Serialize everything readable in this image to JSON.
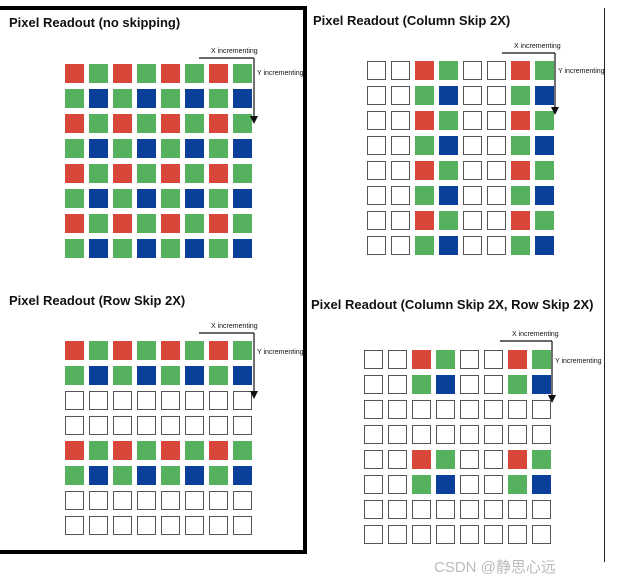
{
  "colors": {
    "red": "#d9473a",
    "green": "#56b15e",
    "blue": "#0b3f9a",
    "empty": "#ffffff",
    "empty_border": "#555555"
  },
  "direction_labels": {
    "x": "X incrementing",
    "y": "Y incrementing"
  },
  "panels": [
    {
      "title": "Pixel Readout (no skipping)",
      "rows": [
        [
          "R",
          "G",
          "R",
          "G",
          "R",
          "G",
          "R",
          "G"
        ],
        [
          "G",
          "B",
          "G",
          "B",
          "G",
          "B",
          "G",
          "B"
        ],
        [
          "R",
          "G",
          "R",
          "G",
          "R",
          "G",
          "R",
          "G"
        ],
        [
          "G",
          "B",
          "G",
          "B",
          "G",
          "B",
          "G",
          "B"
        ],
        [
          "R",
          "G",
          "R",
          "G",
          "R",
          "G",
          "R",
          "G"
        ],
        [
          "G",
          "B",
          "G",
          "B",
          "G",
          "B",
          "G",
          "B"
        ],
        [
          "R",
          "G",
          "R",
          "G",
          "R",
          "G",
          "R",
          "G"
        ],
        [
          "G",
          "B",
          "G",
          "B",
          "G",
          "B",
          "G",
          "B"
        ]
      ]
    },
    {
      "title": "Pixel Readout (Column Skip 2X)",
      "rows": [
        [
          "E",
          "E",
          "R",
          "G",
          "E",
          "E",
          "R",
          "G"
        ],
        [
          "E",
          "E",
          "G",
          "B",
          "E",
          "E",
          "G",
          "B"
        ],
        [
          "E",
          "E",
          "R",
          "G",
          "E",
          "E",
          "R",
          "G"
        ],
        [
          "E",
          "E",
          "G",
          "B",
          "E",
          "E",
          "G",
          "B"
        ],
        [
          "E",
          "E",
          "R",
          "G",
          "E",
          "E",
          "R",
          "G"
        ],
        [
          "E",
          "E",
          "G",
          "B",
          "E",
          "E",
          "G",
          "B"
        ],
        [
          "E",
          "E",
          "R",
          "G",
          "E",
          "E",
          "R",
          "G"
        ],
        [
          "E",
          "E",
          "G",
          "B",
          "E",
          "E",
          "G",
          "B"
        ]
      ]
    },
    {
      "title": "Pixel Readout (Row Skip 2X)",
      "rows": [
        [
          "R",
          "G",
          "R",
          "G",
          "R",
          "G",
          "R",
          "G"
        ],
        [
          "G",
          "B",
          "G",
          "B",
          "G",
          "B",
          "G",
          "B"
        ],
        [
          "E",
          "E",
          "E",
          "E",
          "E",
          "E",
          "E",
          "E"
        ],
        [
          "E",
          "E",
          "E",
          "E",
          "E",
          "E",
          "E",
          "E"
        ],
        [
          "R",
          "G",
          "R",
          "G",
          "R",
          "G",
          "R",
          "G"
        ],
        [
          "G",
          "B",
          "G",
          "B",
          "G",
          "B",
          "G",
          "B"
        ],
        [
          "E",
          "E",
          "E",
          "E",
          "E",
          "E",
          "E",
          "E"
        ],
        [
          "E",
          "E",
          "E",
          "E",
          "E",
          "E",
          "E",
          "E"
        ]
      ]
    },
    {
      "title": "Pixel Readout (Column Skip 2X, Row Skip 2X)",
      "rows": [
        [
          "E",
          "E",
          "R",
          "G",
          "E",
          "E",
          "R",
          "G"
        ],
        [
          "E",
          "E",
          "G",
          "B",
          "E",
          "E",
          "G",
          "B"
        ],
        [
          "E",
          "E",
          "E",
          "E",
          "E",
          "E",
          "E",
          "E"
        ],
        [
          "E",
          "E",
          "E",
          "E",
          "E",
          "E",
          "E",
          "E"
        ],
        [
          "E",
          "E",
          "R",
          "G",
          "E",
          "E",
          "R",
          "G"
        ],
        [
          "E",
          "E",
          "G",
          "B",
          "E",
          "E",
          "G",
          "B"
        ],
        [
          "E",
          "E",
          "E",
          "E",
          "E",
          "E",
          "E",
          "E"
        ],
        [
          "E",
          "E",
          "E",
          "E",
          "E",
          "E",
          "E",
          "E"
        ]
      ]
    }
  ],
  "watermark": "CSDN @静思心远"
}
